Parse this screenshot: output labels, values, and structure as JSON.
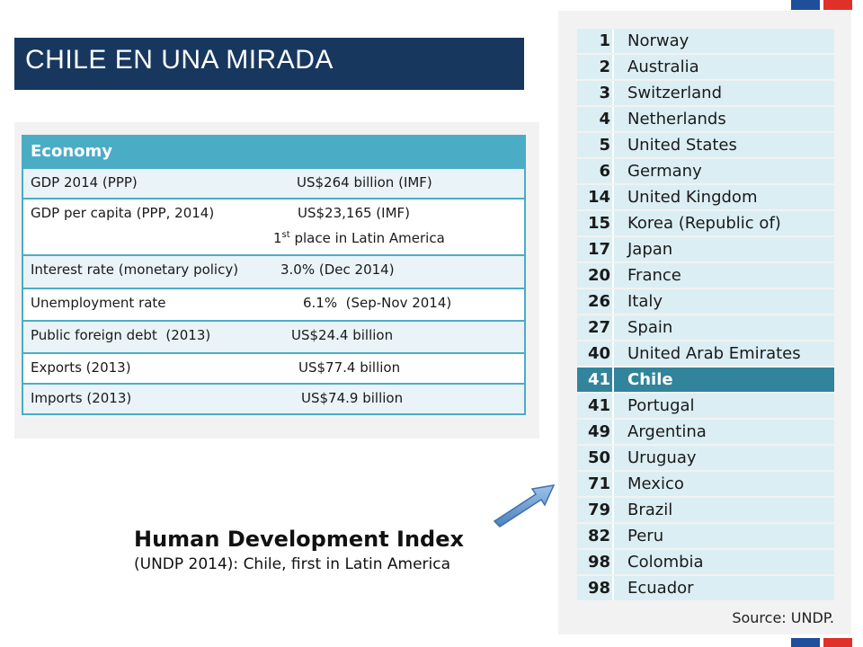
{
  "title": "CHILE EN UNA MIRADA",
  "economy": {
    "header": "Economy",
    "rows": [
      {
        "label": "GDP 2014 (PPP)",
        "value": "US$264 billion (IMF)"
      },
      {
        "label": "GDP per capita (PPP, 2014)",
        "value": "US$23,165 (IMF)",
        "note_num": "1",
        "note_sup": "st",
        "note_rest": " place in Latin America"
      },
      {
        "label": "Interest rate (monetary policy)",
        "value": "3.0% (Dec 2014)"
      },
      {
        "label": "Unemployment rate",
        "value": "6.1%  (Sep-Nov 2014)"
      },
      {
        "label": "Public foreign debt  (2013)",
        "value": "US$24.4 billion"
      },
      {
        "label": "Exports (2013)",
        "value": "US$77.4 billion"
      },
      {
        "label": "Imports (2013)",
        "value": "US$74.9 billion"
      }
    ]
  },
  "hdi": {
    "title": "Human Development Index",
    "subtitle": "(UNDP 2014): Chile, first in Latin America",
    "source": "Source: UNDP.",
    "ranking": [
      {
        "rank": "1",
        "country": "Norway"
      },
      {
        "rank": "2",
        "country": "Australia"
      },
      {
        "rank": "3",
        "country": "Switzerland"
      },
      {
        "rank": "4",
        "country": "Netherlands"
      },
      {
        "rank": "5",
        "country": "United States"
      },
      {
        "rank": "6",
        "country": "Germany"
      },
      {
        "rank": "14",
        "country": "United Kingdom"
      },
      {
        "rank": "15",
        "country": "Korea (Republic of)"
      },
      {
        "rank": "17",
        "country": "Japan"
      },
      {
        "rank": "20",
        "country": "France"
      },
      {
        "rank": "26",
        "country": "Italy"
      },
      {
        "rank": "27",
        "country": "Spain"
      },
      {
        "rank": "40",
        "country": "United Arab Emirates"
      },
      {
        "rank": "41",
        "country": "Chile",
        "highlight": true
      },
      {
        "rank": "41",
        "country": "Portugal"
      },
      {
        "rank": "49",
        "country": "Argentina"
      },
      {
        "rank": "50",
        "country": "Uruguay"
      },
      {
        "rank": "71",
        "country": "Mexico"
      },
      {
        "rank": "79",
        "country": "Brazil"
      },
      {
        "rank": "82",
        "country": "Peru"
      },
      {
        "rank": "98",
        "country": "Colombia"
      },
      {
        "rank": "98",
        "country": "Ecuador"
      }
    ]
  },
  "colors": {
    "title_bg": "#17375e",
    "table_accent": "#4bacc6",
    "highlight": "#31849b",
    "flag_blue": "#1f4e9a",
    "flag_red": "#e0302a"
  },
  "icons": {
    "pointer": "arrow-up-right-icon"
  }
}
